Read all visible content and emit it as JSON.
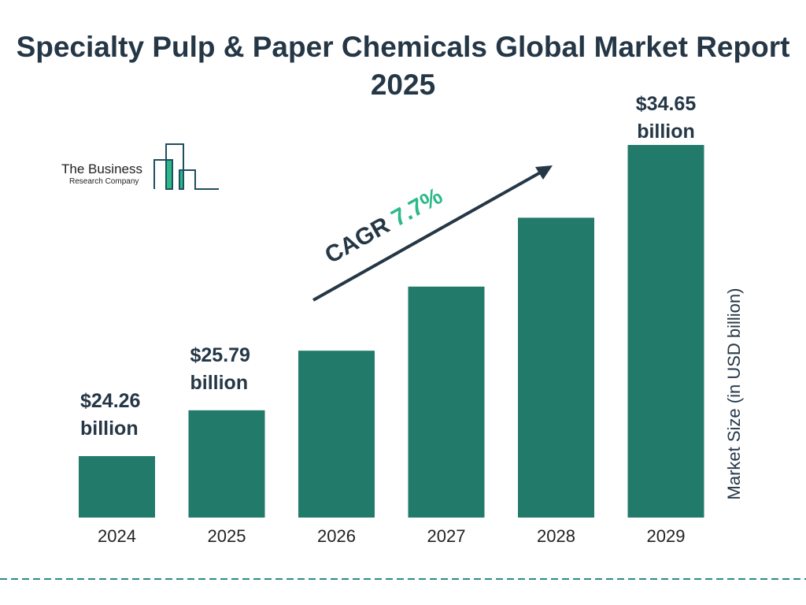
{
  "chart_data": {
    "type": "bar",
    "title": "Specialty Pulp & Paper Chemicals Global Market Report 2025",
    "categories": [
      "2024",
      "2025",
      "2026",
      "2027",
      "2028",
      "2029"
    ],
    "values": [
      24.26,
      25.79,
      27.78,
      29.92,
      32.22,
      34.65
    ],
    "data_labels": [
      {
        "category": "2024",
        "line1": "$24.26",
        "line2": "billion"
      },
      {
        "category": "2025",
        "line1": "$25.79",
        "line2": "billion"
      },
      {
        "category": "2029",
        "line1": "$34.65",
        "line2": "billion"
      }
    ],
    "ylabel": "Market Size (in USD billion)",
    "xlabel": "",
    "grid": false,
    "annotation": {
      "prefix": "CAGR ",
      "value": "7.7%"
    },
    "colors": {
      "bar": "#217a6a",
      "title": "#253746",
      "cagr": "#2bb98a",
      "divider": "#2a8c8c"
    }
  },
  "logo": {
    "line1": "The Business",
    "line2": "Research Company"
  }
}
